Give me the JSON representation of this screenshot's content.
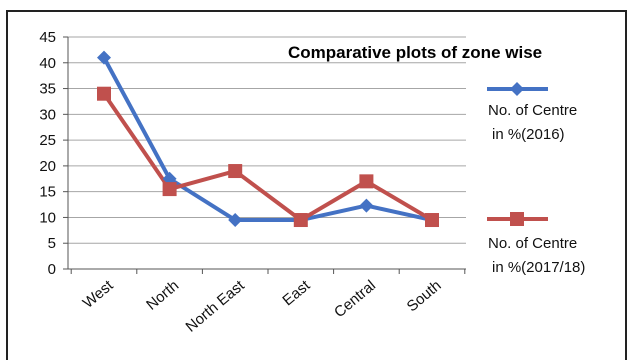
{
  "chart_data": {
    "type": "line",
    "title": "Comparative plots of zone wise",
    "categories": [
      "West",
      "North",
      "North East",
      "East",
      "Central",
      "South"
    ],
    "ylim": [
      0,
      45
    ],
    "yticks": [
      0,
      5,
      10,
      15,
      20,
      25,
      30,
      35,
      40,
      45
    ],
    "grid": true,
    "legend_position": "right",
    "series": [
      {
        "name_line1": "No. of Centre",
        "name_line2": "in %(2016)",
        "color": "#4472C4",
        "marker": "diamond",
        "values": [
          41,
          17.5,
          9.5,
          9.5,
          12.3,
          9.5
        ]
      },
      {
        "name_line1": "No. of Centre",
        "name_line2": "in %(2017/18)",
        "color": "#C0504D",
        "marker": "square",
        "values": [
          34,
          15.5,
          19,
          9.5,
          17,
          9.5
        ]
      }
    ]
  }
}
